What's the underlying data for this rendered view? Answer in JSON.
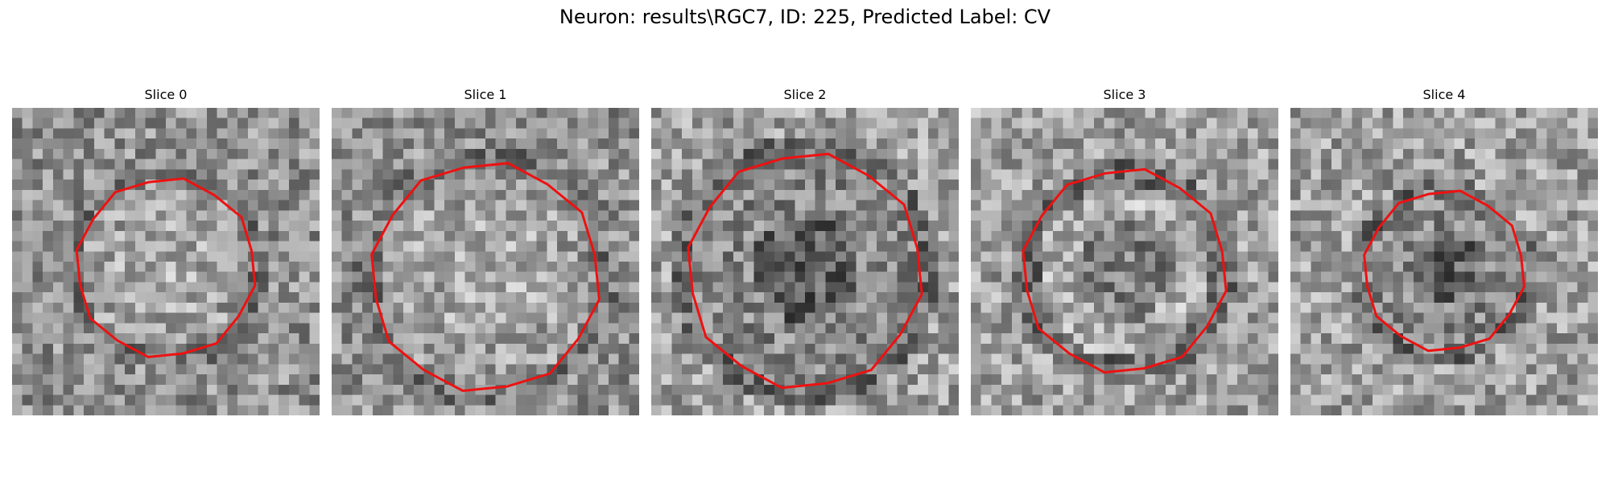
{
  "figure": {
    "title": "Neuron: results\\RGC7, ID: 225, Predicted Label: CV",
    "contour_color": "#ee1111"
  },
  "slices": [
    {
      "title": "Slice 0",
      "center": [
        0.5,
        0.52
      ],
      "radius": 0.29,
      "shape": "bright-center"
    },
    {
      "title": "Slice 1",
      "center": [
        0.5,
        0.55
      ],
      "radius": 0.37,
      "shape": "bright-center"
    },
    {
      "title": "Slice 2",
      "center": [
        0.5,
        0.53
      ],
      "radius": 0.38,
      "shape": "dark-center"
    },
    {
      "title": "Slice 3",
      "center": [
        0.5,
        0.53
      ],
      "radius": 0.33,
      "shape": "ring"
    },
    {
      "title": "Slice 4",
      "center": [
        0.5,
        0.53
      ],
      "radius": 0.26,
      "shape": "dark-center"
    }
  ]
}
